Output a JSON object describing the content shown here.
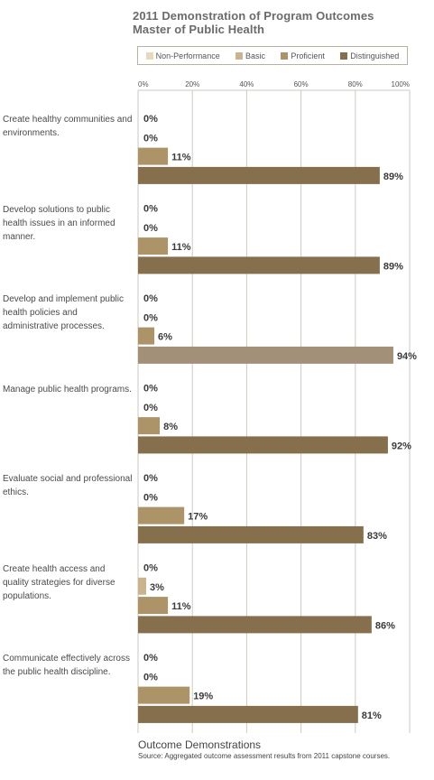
{
  "title_line1": "2011 Demonstration of Program Outcomes",
  "title_line2": "Master of Public Health",
  "legend": [
    {
      "name": "Non-Performance",
      "color": "#e6d9be"
    },
    {
      "name": "Basic",
      "color": "#c8b48f"
    },
    {
      "name": "Proficient",
      "color": "#ad9368"
    },
    {
      "name": "Distinguished",
      "color": "#866f4c"
    }
  ],
  "footer": {
    "xlabel": "Outcome Demonstrations",
    "source": "Source: Aggregated outcome assessment results from 2011 capstone courses."
  },
  "chart_data": {
    "type": "bar",
    "orientation": "horizontal",
    "title": "2011 Demonstration of Program Outcomes",
    "subtitle": "Master of Public Health",
    "xlabel": "Outcome Demonstrations",
    "xlim": [
      0,
      100
    ],
    "tick_labels": [
      "0%",
      "20%",
      "40%",
      "60%",
      "80%",
      "100%"
    ],
    "grid": true,
    "legend_position": "top",
    "categories": [
      "Create healthy communities and environments.",
      "Develop solutions to public health issues in an informed manner.",
      "Develop and implement public health policies and administrative processes.",
      "Manage public health programs.",
      "Evaluate social and professional ethics.",
      "Create health access and quality strategies for diverse populations.",
      "Communicate effectively across the public health discipline."
    ],
    "series": [
      {
        "name": "Non-Performance",
        "color": "#e6d9be",
        "values": [
          0,
          0,
          0,
          0,
          0,
          0,
          0
        ],
        "labels": [
          "0%",
          "0%",
          "0%",
          "0%",
          "0%",
          "0%",
          "0%"
        ]
      },
      {
        "name": "Basic",
        "color": "#c8b48f",
        "values": [
          0,
          0,
          0,
          0,
          0,
          3,
          0
        ],
        "labels": [
          "0%",
          "0%",
          "0%",
          "0%",
          "0%",
          "3%",
          "0%"
        ]
      },
      {
        "name": "Proficient",
        "color": "#ad9368",
        "values": [
          11,
          11,
          6,
          8,
          17,
          11,
          19
        ],
        "labels": [
          "11%",
          "11%",
          "6%",
          "8%",
          "17%",
          "11%",
          "19%"
        ]
      },
      {
        "name": "Distinguished",
        "color": "#866f4c",
        "values": [
          89,
          89,
          94,
          92,
          83,
          86,
          81
        ],
        "labels": [
          "89%",
          "89%",
          "94%",
          "92%",
          "83%",
          "86%",
          "81%"
        ]
      }
    ]
  }
}
